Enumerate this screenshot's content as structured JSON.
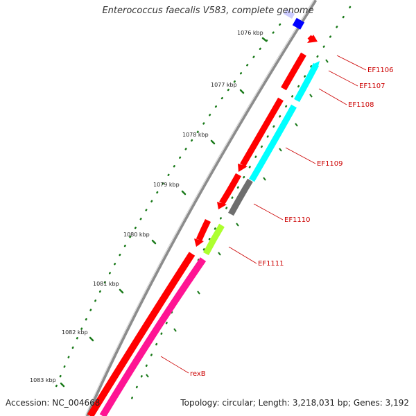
{
  "map": {
    "title": "Enterococcus faecalis V583, complete genome",
    "accession": "Accession: NC_004668",
    "summary": "Topology: circular; Length: 3,218,031 bp; Genes: 3,192",
    "kbp_labels": [
      "1076 kbp",
      "1077 kbp",
      "1078 kbp",
      "1079 kbp",
      "1080 kbp",
      "1081 kbp",
      "1082 kbp",
      "1083 kbp"
    ],
    "gene_labels": [
      "EF1106",
      "EF1107",
      "EF1108",
      "EF1109",
      "EF1110",
      "EF1111",
      "rexB"
    ],
    "colors": {
      "backbone": "#8c8c8c",
      "forward_cds": "#ff0000",
      "cyan_cds": "#00ffff",
      "gray_cds": "#6e6e6e",
      "lime_cds": "#adff2f",
      "magenta_cds": "#ff1493",
      "blue_cds": "#0000ff",
      "ticks": "#1a7a1a",
      "label_text": "#cc0000"
    }
  }
}
